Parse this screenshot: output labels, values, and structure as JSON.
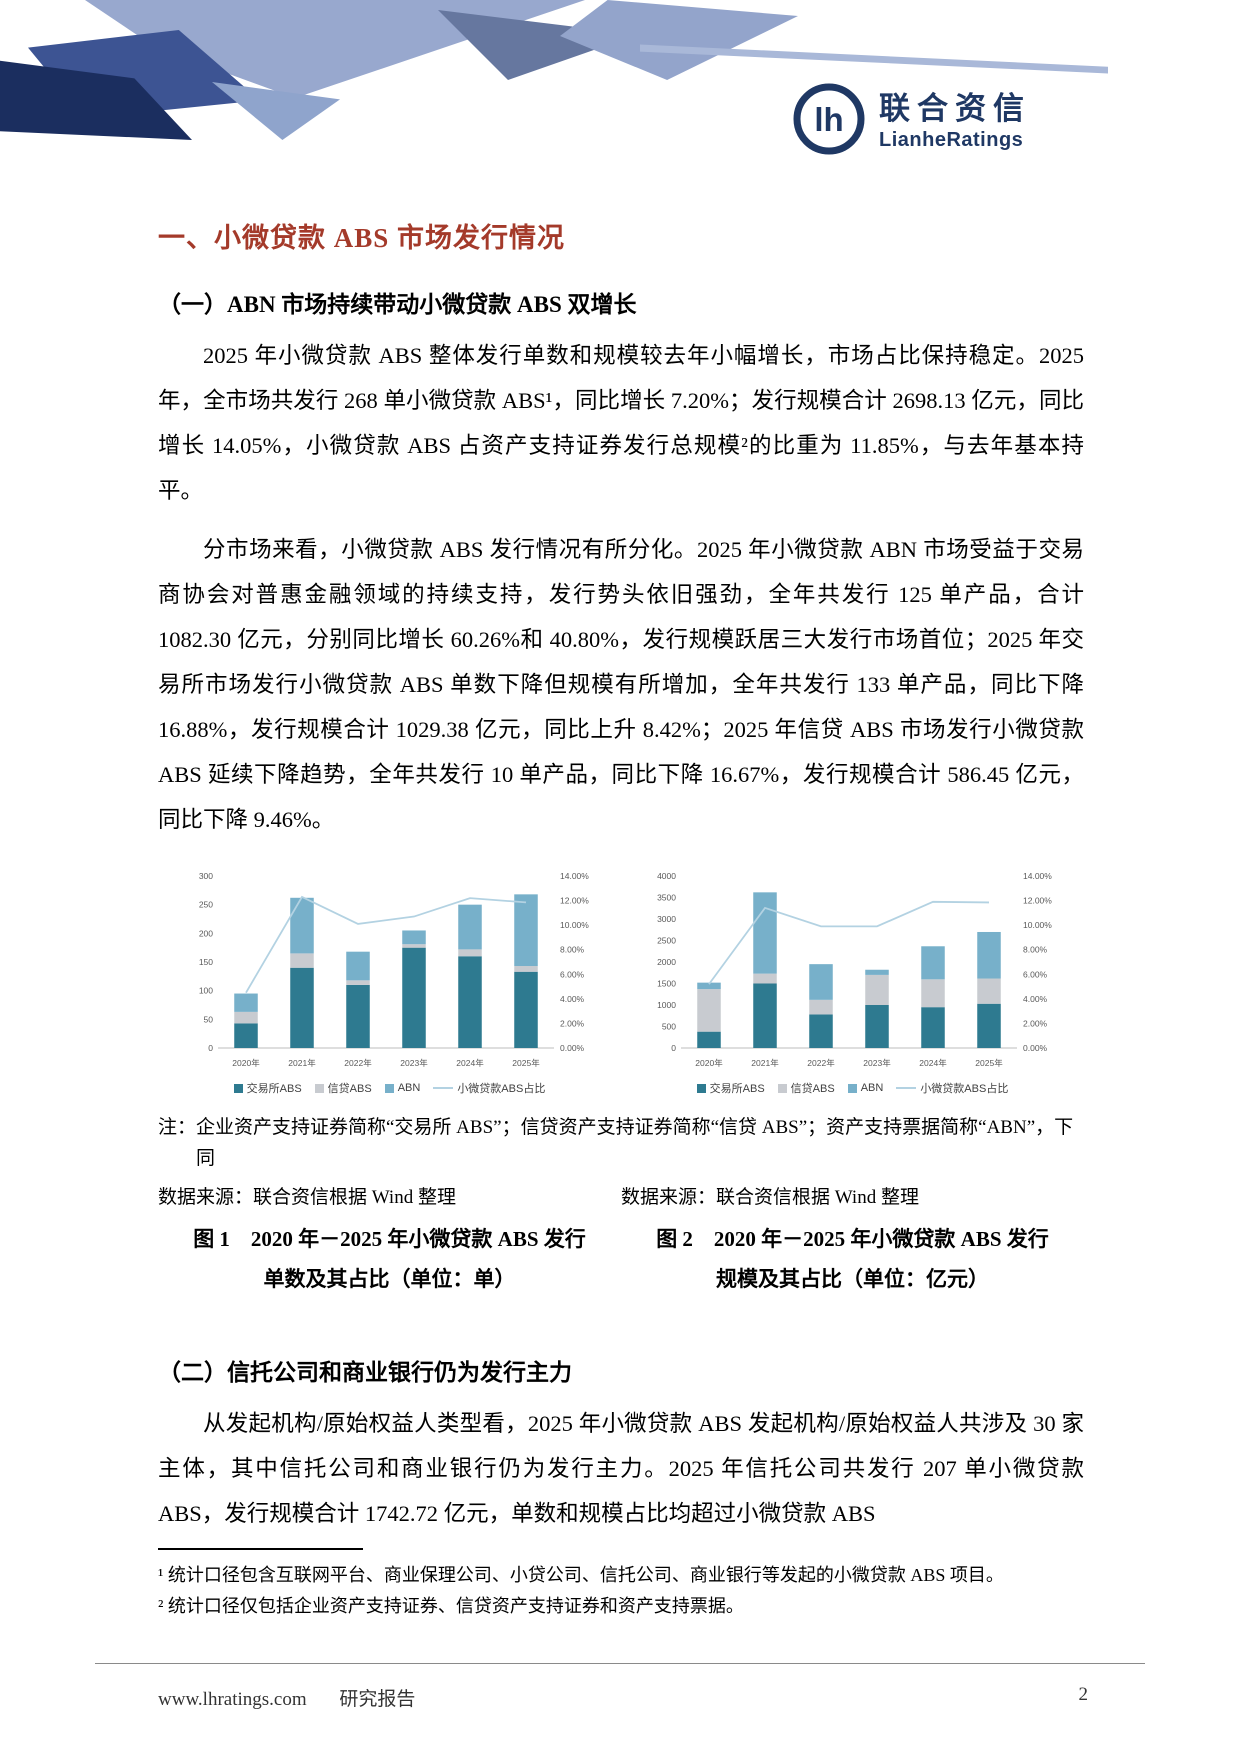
{
  "logo": {
    "cn": "联合资信",
    "en": "LianheRatings"
  },
  "colors": {
    "title_red": "#a43a2a",
    "brand_navy": "#1f3864",
    "bar_exchange": "#2e7a90",
    "bar_credit": "#c8cbd0",
    "bar_abn": "#77b0ca",
    "ratio_line": "#b3d2e2"
  },
  "section": {
    "title": "一、小微贷款 ABS 市场发行情况",
    "sub1_title": "（一）ABN 市场持续带动小微贷款 ABS 双增长",
    "para1": "2025 年小微贷款 ABS 整体发行单数和规模较去年小幅增长，市场占比保持稳定。2025 年，全市场共发行 268 单小微贷款 ABS¹，同比增长 7.20%；发行规模合计 2698.13 亿元，同比增长 14.05%，小微贷款 ABS 占资产支持证券发行总规模²的比重为 11.85%，与去年基本持平。",
    "para2": "分市场来看，小微贷款 ABS 发行情况有所分化。2025 年小微贷款 ABN 市场受益于交易商协会对普惠金融领域的持续支持，发行势头依旧强劲，全年共发行 125 单产品，合计 1082.30 亿元，分别同比增长 60.26%和 40.80%，发行规模跃居三大发行市场首位；2025 年交易所市场发行小微贷款 ABS 单数下降但规模有所增加，全年共发行 133 单产品，同比下降 16.88%，发行规模合计 1029.38 亿元，同比上升 8.42%；2025 年信贷 ABS 市场发行小微贷款 ABS 延续下降趋势，全年共发行 10 单产品，同比下降 16.67%，发行规模合计 586.45 亿元，同比下降 9.46%。",
    "sub2_title": "（二）信托公司和商业银行仍为发行主力",
    "para3": "从发起机构/原始权益人类型看，2025 年小微贷款 ABS 发起机构/原始权益人共涉及 30 家主体，其中信托公司和商业银行仍为发行主力。2025 年信托公司共发行 207 单小微贷款 ABS，发行规模合计 1742.72 亿元，单数和规模占比均超过小微贷款 ABS"
  },
  "charts": {
    "note": "注：企业资产支持证券简称“交易所 ABS”；信贷资产支持证券简称“信贷 ABS”；资产支持票据简称“ABN”，下同",
    "source1": "数据来源：联合资信根据 Wind 整理",
    "source2": "数据来源：联合资信根据 Wind 整理",
    "fig1_caption": "图 1　2020 年－2025 年小微贷款 ABS 发行单数及其占比（单位：单）",
    "fig2_caption": "图 2　2020 年－2025 年小微贷款 ABS 发行规模及其占比（单位：亿元）"
  },
  "chart_data": [
    {
      "type": "bar",
      "title": "2020年－2025年小微贷款ABS发行单数及其占比（单位：单）",
      "categories": [
        "2020年",
        "2021年",
        "2022年",
        "2023年",
        "2024年",
        "2025年"
      ],
      "series": [
        {
          "name": "交易所ABS",
          "color": "#2e7a90",
          "values": [
            43,
            140,
            110,
            175,
            160,
            133
          ]
        },
        {
          "name": "信贷ABS",
          "color": "#c8cbd0",
          "values": [
            20,
            25,
            8,
            6,
            12,
            10
          ]
        },
        {
          "name": "ABN",
          "color": "#77b0ca",
          "values": [
            32,
            97,
            50,
            24,
            78,
            125
          ]
        }
      ],
      "line": {
        "name": "小微贷款ABS占比",
        "color": "#b3d2e2",
        "values": [
          4.5,
          12.3,
          10.1,
          10.7,
          12.2,
          11.85
        ]
      },
      "axis_left": {
        "ticks": [
          0,
          50,
          100,
          150,
          200,
          250,
          300
        ]
      },
      "axis_right": {
        "ticks": [
          "0.00%",
          "2.00%",
          "4.00%",
          "6.00%",
          "8.00%",
          "10.00%",
          "12.00%",
          "14.00%"
        ],
        "max": 14
      },
      "legend_position": "bottom",
      "grid": false
    },
    {
      "type": "bar",
      "title": "2020年－2025年小微贷款ABS发行规模及其占比（单位：亿元）",
      "categories": [
        "2020年",
        "2021年",
        "2022年",
        "2023年",
        "2024年",
        "2025年"
      ],
      "series": [
        {
          "name": "交易所ABS",
          "color": "#2e7a90",
          "values": [
            380,
            1500,
            780,
            1000,
            949.4,
            1029.38
          ]
        },
        {
          "name": "信贷ABS",
          "color": "#c8cbd0",
          "values": [
            990,
            230,
            340,
            700,
            647.7,
            586.45
          ]
        },
        {
          "name": "ABN",
          "color": "#77b0ca",
          "values": [
            150,
            1890,
            830,
            120,
            768.7,
            1082.3
          ]
        }
      ],
      "line": {
        "name": "小微贷款ABS占比",
        "color": "#b3d2e2",
        "values": [
          5.2,
          11.4,
          9.9,
          9.9,
          11.9,
          11.85
        ]
      },
      "axis_left": {
        "ticks": [
          0,
          500,
          1000,
          1500,
          2000,
          2500,
          3000,
          3500,
          4000
        ]
      },
      "axis_right": {
        "ticks": [
          "0.00%",
          "2.00%",
          "4.00%",
          "6.00%",
          "8.00%",
          "10.00%",
          "12.00%",
          "14.00%"
        ],
        "max": 14
      },
      "legend_position": "bottom",
      "grid": false
    }
  ],
  "footnotes": {
    "fn1": "¹ 统计口径包含互联网平台、商业保理公司、小贷公司、信托公司、商业银行等发起的小微贷款 ABS 项目。",
    "fn2": "² 统计口径仅包括企业资产支持证券、信贷资产支持证券和资产支持票据。"
  },
  "footer": {
    "site": "www.lhratings.com",
    "doc_type": "研究报告",
    "page_number": "2"
  }
}
